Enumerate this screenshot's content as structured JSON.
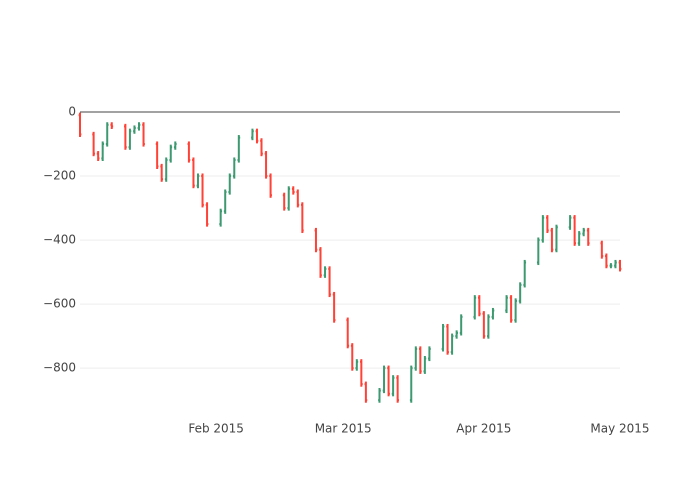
{
  "chart_data": {
    "type": "ohlc",
    "x": [
      "2015-01-02",
      "2015-01-05",
      "2015-01-06",
      "2015-01-07",
      "2015-01-08",
      "2015-01-09",
      "2015-01-12",
      "2015-01-13",
      "2015-01-14",
      "2015-01-15",
      "2015-01-16",
      "2015-01-19",
      "2015-01-20",
      "2015-01-21",
      "2015-01-22",
      "2015-01-23",
      "2015-01-26",
      "2015-01-27",
      "2015-01-28",
      "2015-01-29",
      "2015-01-30",
      "2015-02-02",
      "2015-02-03",
      "2015-02-04",
      "2015-02-05",
      "2015-02-06",
      "2015-02-09",
      "2015-02-10",
      "2015-02-11",
      "2015-02-12",
      "2015-02-13",
      "2015-02-16",
      "2015-02-17",
      "2015-02-18",
      "2015-02-19",
      "2015-02-20",
      "2015-02-23",
      "2015-02-24",
      "2015-02-25",
      "2015-02-26",
      "2015-02-27",
      "2015-03-02",
      "2015-03-03",
      "2015-03-04",
      "2015-03-05",
      "2015-03-06",
      "2015-03-09",
      "2015-03-10",
      "2015-03-11",
      "2015-03-12",
      "2015-03-13",
      "2015-03-16",
      "2015-03-17",
      "2015-03-18",
      "2015-03-19",
      "2015-03-20",
      "2015-03-23",
      "2015-03-24",
      "2015-03-25",
      "2015-03-26",
      "2015-03-27",
      "2015-03-30",
      "2015-03-31",
      "2015-04-01",
      "2015-04-02",
      "2015-04-03",
      "2015-04-06",
      "2015-04-07",
      "2015-04-08",
      "2015-04-09",
      "2015-04-10",
      "2015-04-13",
      "2015-04-14",
      "2015-04-15",
      "2015-04-16",
      "2015-04-17",
      "2015-04-20",
      "2015-04-21",
      "2015-04-22",
      "2015-04-23",
      "2015-04-24",
      "2015-04-27",
      "2015-04-28",
      "2015-04-29",
      "2015-04-30",
      "2015-05-01"
    ],
    "open": [
      -10,
      -70,
      -130,
      -145,
      -100,
      -40,
      -45,
      -110,
      -60,
      -50,
      -40,
      -100,
      -170,
      -210,
      -150,
      -110,
      -100,
      -150,
      -230,
      -200,
      -290,
      -350,
      -310,
      -250,
      -200,
      -150,
      -80,
      -60,
      -90,
      -130,
      -200,
      -260,
      -300,
      -240,
      -250,
      -290,
      -370,
      -430,
      -510,
      -490,
      -570,
      -650,
      -730,
      -800,
      -780,
      -850,
      -900,
      -870,
      -800,
      -880,
      -830,
      -900,
      -800,
      -740,
      -810,
      -770,
      -740,
      -670,
      -750,
      -700,
      -690,
      -640,
      -580,
      -630,
      -700,
      -640,
      -620,
      -580,
      -650,
      -590,
      -540,
      -470,
      -400,
      -330,
      -370,
      -430,
      -360,
      -330,
      -410,
      -380,
      -370,
      -410,
      -450,
      -480,
      -480,
      -470
    ],
    "high": [
      -2,
      -62,
      -122,
      -92,
      -32,
      -32,
      -37,
      -52,
      -42,
      -32,
      -32,
      -92,
      -162,
      -142,
      -102,
      -92,
      -92,
      -142,
      -192,
      -192,
      -282,
      -302,
      -242,
      -192,
      -142,
      -72,
      -52,
      -52,
      -82,
      -122,
      -192,
      -252,
      -232,
      -232,
      -242,
      -282,
      -362,
      -422,
      -482,
      -482,
      -562,
      -642,
      -722,
      -772,
      -772,
      -842,
      -862,
      -792,
      -792,
      -822,
      -822,
      -792,
      -732,
      -732,
      -762,
      -732,
      -662,
      -662,
      -692,
      -682,
      -632,
      -572,
      -572,
      -622,
      -632,
      -612,
      -572,
      -572,
      -582,
      -532,
      -462,
      -392,
      -322,
      -322,
      -362,
      -352,
      -322,
      -322,
      -372,
      -362,
      -362,
      -402,
      -442,
      -472,
      -462,
      -462
    ],
    "low": [
      -78,
      -138,
      -153,
      -153,
      -108,
      -53,
      -118,
      -118,
      -68,
      -58,
      -108,
      -178,
      -218,
      -218,
      -158,
      -118,
      -158,
      -238,
      -238,
      -298,
      -358,
      -358,
      -318,
      -258,
      -208,
      -158,
      -88,
      -98,
      -138,
      -208,
      -268,
      -308,
      -308,
      -258,
      -298,
      -378,
      -438,
      -518,
      -518,
      -578,
      -658,
      -738,
      -808,
      -808,
      -858,
      -908,
      -908,
      -878,
      -888,
      -888,
      -908,
      -908,
      -808,
      -818,
      -818,
      -778,
      -748,
      -758,
      -758,
      -708,
      -698,
      -648,
      -638,
      -708,
      -708,
      -648,
      -628,
      -658,
      -658,
      -598,
      -548,
      -478,
      -408,
      -378,
      -438,
      -438,
      -368,
      -418,
      -418,
      -388,
      -418,
      -458,
      -488,
      -488,
      -488,
      -498
    ],
    "close": [
      -70,
      -130,
      -145,
      -100,
      -40,
      -45,
      -110,
      -60,
      -50,
      -40,
      -100,
      -170,
      -210,
      -150,
      -110,
      -100,
      -150,
      -230,
      -200,
      -290,
      -350,
      -310,
      -250,
      -200,
      -150,
      -80,
      -60,
      -90,
      -130,
      -200,
      -260,
      -300,
      -240,
      -250,
      -290,
      -370,
      -430,
      -510,
      -490,
      -570,
      -650,
      -730,
      -800,
      -780,
      -850,
      -900,
      -870,
      -800,
      -880,
      -830,
      -900,
      -800,
      -740,
      -810,
      -770,
      -740,
      -670,
      -750,
      -700,
      -690,
      -640,
      -580,
      -630,
      -700,
      -640,
      -620,
      -580,
      -650,
      -590,
      -540,
      -470,
      -400,
      -330,
      -370,
      -430,
      -360,
      -330,
      -410,
      -380,
      -370,
      -410,
      -450,
      -480,
      -480,
      -470,
      -490
    ],
    "increasing_color": "#3D9970",
    "decreasing_color": "#FF4136",
    "xlim": [
      "2015-01-02",
      "2015-05-01"
    ],
    "xticks": [
      {
        "value": "2015-02-01",
        "label": "Feb 2015"
      },
      {
        "value": "2015-03-01",
        "label": "Mar 2015"
      },
      {
        "value": "2015-04-01",
        "label": "Apr 2015"
      },
      {
        "value": "2015-05-01",
        "label": "May 2015"
      }
    ],
    "ylim": [
      -912,
      0
    ],
    "yticks": [
      0,
      {
        "value": -200,
        "label": "−200"
      },
      {
        "value": -400,
        "label": "−400"
      },
      {
        "value": -600,
        "label": "−600"
      },
      {
        "value": -800,
        "label": "−800"
      }
    ],
    "grid": true
  }
}
